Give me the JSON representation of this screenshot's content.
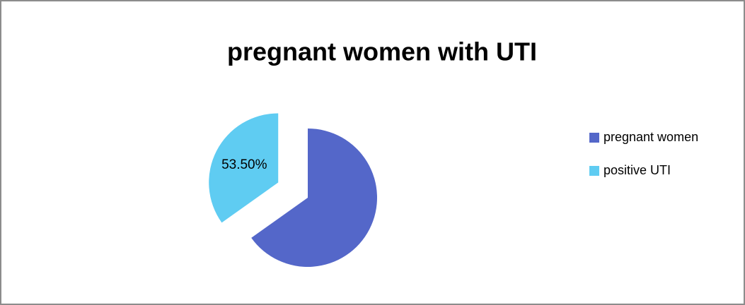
{
  "chart_data": {
    "type": "pie",
    "title": "pregnant women with UTI",
    "categories": [
      "pregnant women",
      "positive UTI"
    ],
    "values": [
      100,
      53.5
    ],
    "value_labels": [
      null,
      "53.50%"
    ],
    "colors": [
      "#5467c9",
      "#5fccf2"
    ],
    "legend": "right"
  }
}
